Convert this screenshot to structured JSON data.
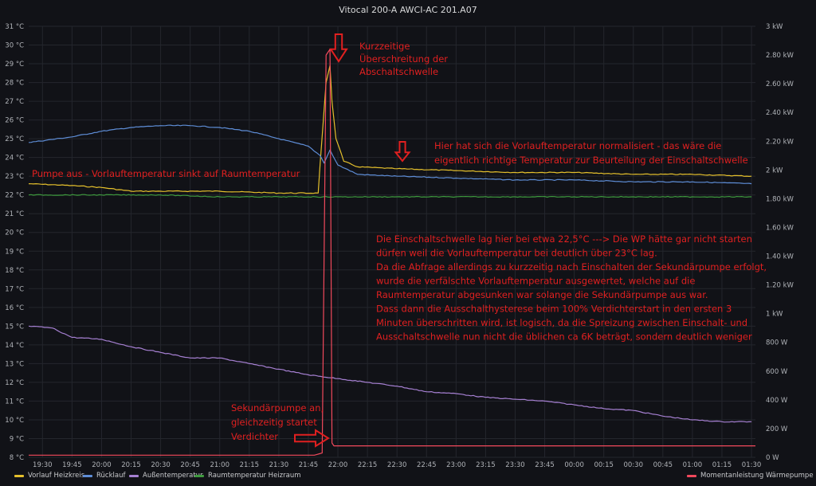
{
  "title": "Vitocal 200-A AWCI-AC 201.A07",
  "colors": {
    "background": "#111217",
    "grid": "#24262d",
    "vorlauf": "#e5c02c",
    "ruecklauf": "#5e8dd6",
    "aussen": "#a680d2",
    "raum": "#3e9a3e",
    "leistung": "#f2495c",
    "annotation": "#e02020"
  },
  "chart_data": {
    "type": "line",
    "x_labels": [
      "19:30",
      "19:45",
      "20:00",
      "20:15",
      "20:30",
      "20:45",
      "21:00",
      "21:15",
      "21:30",
      "21:45",
      "22:00",
      "22:15",
      "22:30",
      "22:45",
      "23:00",
      "23:15",
      "23:30",
      "23:45",
      "00:00",
      "00:15",
      "00:30",
      "00:45",
      "01:00",
      "01:15",
      "01:30"
    ],
    "x_range": [
      "19:23",
      "01:32"
    ],
    "y_left": {
      "min": 8,
      "max": 31,
      "unit": "°C",
      "ticks": [
        "8 °C",
        "9 °C",
        "10 °C",
        "11 °C",
        "12 °C",
        "13 °C",
        "14 °C",
        "15 °C",
        "16 °C",
        "17 °C",
        "18 °C",
        "19 °C",
        "20 °C",
        "21 °C",
        "22 °C",
        "23 °C",
        "24 °C",
        "25 °C",
        "26 °C",
        "27 °C",
        "28 °C",
        "29 °C",
        "30 °C",
        "31 °C"
      ]
    },
    "y_right": {
      "min": 0,
      "max": 3000,
      "unit": "W",
      "ticks": [
        "0 W",
        "200 W",
        "400 W",
        "600 W",
        "800 W",
        "1 kW",
        "1.20 kW",
        "1.40 kW",
        "1.60 kW",
        "1.80 kW",
        "2 kW",
        "2.20 kW",
        "2.40 kW",
        "2.60 kW",
        "2.80 kW",
        "3 kW"
      ]
    },
    "grid": true,
    "legend_position": "bottom",
    "series": [
      {
        "name": "Vorlauf Heizkreis",
        "axis": "left",
        "color": "#e5c02c",
        "points": [
          [
            "19:23",
            22.6
          ],
          [
            "19:45",
            22.5
          ],
          [
            "20:00",
            22.4
          ],
          [
            "20:15",
            22.2
          ],
          [
            "20:30",
            22.2
          ],
          [
            "21:00",
            22.2
          ],
          [
            "21:30",
            22.1
          ],
          [
            "21:50",
            22.1
          ],
          [
            "21:51",
            23.7
          ],
          [
            "21:54",
            28.0
          ],
          [
            "21:56",
            28.9
          ],
          [
            "21:57",
            27.0
          ],
          [
            "21:59",
            25.0
          ],
          [
            "22:03",
            23.8
          ],
          [
            "22:10",
            23.5
          ],
          [
            "22:30",
            23.4
          ],
          [
            "23:00",
            23.3
          ],
          [
            "23:30",
            23.2
          ],
          [
            "00:00",
            23.2
          ],
          [
            "00:30",
            23.1
          ],
          [
            "01:00",
            23.1
          ],
          [
            "01:30",
            23.0
          ]
        ]
      },
      {
        "name": "Rücklauf",
        "axis": "left",
        "color": "#5e8dd6",
        "points": [
          [
            "19:23",
            24.8
          ],
          [
            "19:45",
            25.1
          ],
          [
            "20:00",
            25.4
          ],
          [
            "20:15",
            25.6
          ],
          [
            "20:30",
            25.7
          ],
          [
            "20:45",
            25.7
          ],
          [
            "21:00",
            25.6
          ],
          [
            "21:15",
            25.4
          ],
          [
            "21:30",
            25.0
          ],
          [
            "21:45",
            24.6
          ],
          [
            "21:51",
            24.1
          ],
          [
            "21:53",
            23.7
          ],
          [
            "21:56",
            24.4
          ],
          [
            "22:00",
            23.6
          ],
          [
            "22:10",
            23.1
          ],
          [
            "22:30",
            23.0
          ],
          [
            "23:00",
            22.9
          ],
          [
            "23:30",
            22.8
          ],
          [
            "00:00",
            22.8
          ],
          [
            "00:30",
            22.7
          ],
          [
            "01:00",
            22.7
          ],
          [
            "01:30",
            22.6
          ]
        ]
      },
      {
        "name": "Außentemperatur",
        "axis": "left",
        "color": "#a680d2",
        "points": [
          [
            "19:23",
            15.0
          ],
          [
            "19:35",
            14.9
          ],
          [
            "19:45",
            14.4
          ],
          [
            "20:00",
            14.3
          ],
          [
            "20:15",
            13.9
          ],
          [
            "20:30",
            13.6
          ],
          [
            "20:45",
            13.3
          ],
          [
            "21:00",
            13.3
          ],
          [
            "21:15",
            13.0
          ],
          [
            "21:30",
            12.7
          ],
          [
            "21:45",
            12.4
          ],
          [
            "22:00",
            12.2
          ],
          [
            "22:15",
            12.0
          ],
          [
            "22:30",
            11.8
          ],
          [
            "22:45",
            11.5
          ],
          [
            "23:00",
            11.4
          ],
          [
            "23:15",
            11.2
          ],
          [
            "23:30",
            11.1
          ],
          [
            "23:45",
            11.0
          ],
          [
            "00:00",
            10.8
          ],
          [
            "00:15",
            10.6
          ],
          [
            "00:30",
            10.5
          ],
          [
            "00:45",
            10.2
          ],
          [
            "01:00",
            10.0
          ],
          [
            "01:15",
            9.9
          ],
          [
            "01:30",
            9.9
          ]
        ]
      },
      {
        "name": "Raumtemperatur Heizraum",
        "axis": "left",
        "color": "#3e9a3e",
        "points": [
          [
            "19:23",
            22.0
          ],
          [
            "20:00",
            22.0
          ],
          [
            "20:30",
            22.0
          ],
          [
            "21:00",
            21.9
          ],
          [
            "21:30",
            21.9
          ],
          [
            "22:00",
            21.9
          ],
          [
            "22:30",
            21.9
          ],
          [
            "23:00",
            21.9
          ],
          [
            "23:30",
            21.9
          ],
          [
            "00:00",
            21.9
          ],
          [
            "00:30",
            21.9
          ],
          [
            "01:00",
            21.9
          ],
          [
            "01:30",
            21.9
          ]
        ]
      },
      {
        "name": "Momentanleistung Wärmepumpe",
        "axis": "right",
        "color": "#f2495c",
        "points": [
          [
            "19:23",
            15
          ],
          [
            "21:48",
            15
          ],
          [
            "21:52",
            30
          ],
          [
            "21:54",
            2800
          ],
          [
            "21:56",
            2840
          ],
          [
            "21:57",
            100
          ],
          [
            "21:58",
            80
          ],
          [
            "22:30",
            80
          ],
          [
            "23:00",
            80
          ],
          [
            "00:00",
            80
          ],
          [
            "01:00",
            80
          ],
          [
            "01:32",
            80
          ]
        ]
      }
    ],
    "annotations": [
      {
        "id": "kurzzeitig",
        "lines": [
          "Kurzzeitige",
          "Überschreitung der",
          "Abschaltschwelle"
        ]
      },
      {
        "id": "normalisiert",
        "lines": [
          "Hier hat sich die Vorlauftemperatur normalisiert - das wäre die",
          "eigentlich richtige Temperatur zur Beurteilung der Einschaltschwelle"
        ]
      },
      {
        "id": "pumpe-aus",
        "lines": [
          "Pumpe aus - Vorlauftemperatur sinkt auf Raumtemperatur"
        ]
      },
      {
        "id": "erklaerung",
        "lines": [
          "Die Einschaltschwelle lag hier bei etwa 22,5°C ---> Die WP hätte gar nicht starten",
          "dürfen weil die Vorlauftemperatur bei deutlich über 23°C lag.",
          "Da die Abfrage allerdings zu kurzzeitig nach Einschalten der Sekundärpumpe erfolgt,",
          "wurde die verfälschte Vorlauftemperatur ausgewertet, welche auf die",
          "Raumtemperatur abgesunken war solange die Sekundärpumpe aus war.",
          "Dass dann die Ausschalthysterese beim 100% Verdichterstart in den ersten 3",
          "Minuten überschritten wird, ist logisch, da die Spreizung zwischen Einschalt- und",
          "Ausschaltschwelle nun nicht die üblichen ca 6K beträgt, sondern deutlich weniger"
        ]
      },
      {
        "id": "sekundaer",
        "lines": [
          "Sekundärpumpe an,",
          "gleichzeitig startet",
          "Verdichter"
        ]
      }
    ]
  }
}
